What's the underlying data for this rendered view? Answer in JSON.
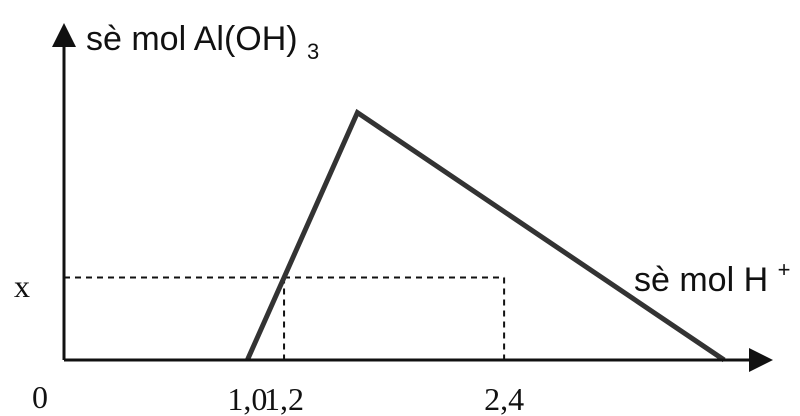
{
  "chart_data": {
    "type": "line",
    "ylabel": {
      "main": "sè mol Al(OH)",
      "subscript": "3"
    },
    "xlabel": {
      "main": "sè mol H",
      "superscript": "+"
    },
    "origin_label": "0",
    "y_marker_label": "x",
    "xticks": [
      {
        "label": "1,0",
        "value": 1.0
      },
      {
        "label": "1,2",
        "value": 1.2
      },
      {
        "label": "2,4",
        "value": 2.4
      }
    ],
    "series": [
      {
        "points": [
          {
            "x": 1.0,
            "y": 0
          },
          {
            "x": 1.6,
            "y": 1.0
          },
          {
            "x": 3.6,
            "y": 0
          }
        ]
      }
    ],
    "guides": [
      {
        "x": 1.2,
        "y": "x"
      },
      {
        "x": 2.4,
        "y": "x"
      }
    ],
    "xlim": [
      0,
      3.85
    ],
    "ylim": [
      0,
      1.35
    ],
    "colors": {
      "axis": "#111111",
      "series": "#333333",
      "guides": "#111111"
    }
  }
}
